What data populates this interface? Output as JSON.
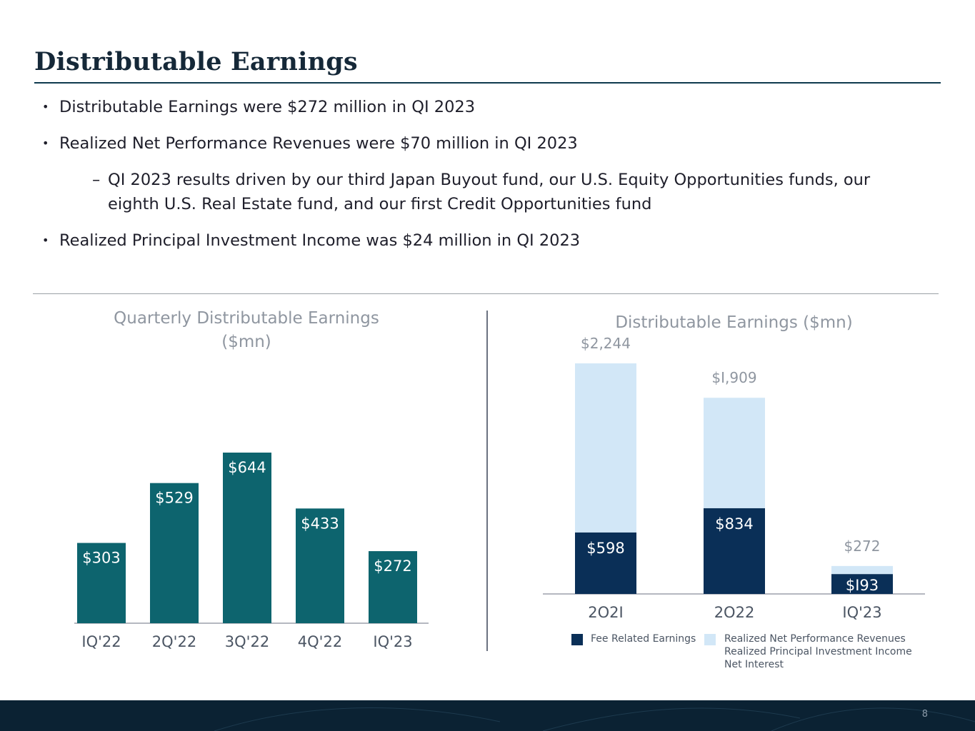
{
  "title": "Distributable Earnings",
  "bullets": [
    "Distributable Earnings were $272 million in QI 2023",
    "Realized Net Performance Revenues were $70 million in QI 2023",
    "QI 2023 results driven by our third Japan Buyout fund, our U.S. Equity Opportunities funds, our",
    "eighth U.S. Real Estate fund, and our first Credit Opportunities fund",
    "Realized Principal Investment Income was $24 million in QI 2023"
  ],
  "page_number": "8",
  "colors": {
    "teal": "#0d646e",
    "navy": "#0a2f57",
    "light_blue": "#d2e7f7",
    "title": "#152838"
  },
  "chart_data": [
    {
      "type": "bar",
      "title": "Quarterly Distributable Earnings",
      "title_line2": "($mn)",
      "categories": [
        "IQ'22",
        "2Q'22",
        "3Q'22",
        "4Q'22",
        "IQ'23"
      ],
      "values": [
        303,
        529,
        644,
        433,
        272
      ],
      "value_labels": [
        "$303",
        "$529",
        "$644",
        "$433",
        "$272"
      ],
      "ylim": [
        0,
        700
      ],
      "xlabel": "",
      "ylabel": ""
    },
    {
      "type": "bar",
      "stacked": true,
      "title": "Distributable Earnings ($mn)",
      "categories": [
        "2021",
        "2022",
        "IQ'23"
      ],
      "category_labels": [
        "2O2I",
        "2O22",
        "IQ'23"
      ],
      "series": [
        {
          "name": "Fee Related Earnings",
          "values": [
            598,
            834,
            193
          ],
          "labels": [
            "$598",
            "$834",
            "$I93"
          ]
        },
        {
          "name": "Realized Net Performance Revenues Realized Principal Investment Income Net Interest",
          "values": [
            1646,
            1075,
            79
          ]
        }
      ],
      "totals": [
        2244,
        1909,
        272
      ],
      "total_labels": [
        "$2,244",
        "$I,909",
        "$272"
      ],
      "legend": {
        "fee_related": "Fee Related Earnings",
        "other_line1": "Realized Net Performance Revenues",
        "other_line2": "Realized Principal Investment Income",
        "other_line3": "Net Interest"
      },
      "ylim": [
        0,
        2400
      ]
    }
  ]
}
